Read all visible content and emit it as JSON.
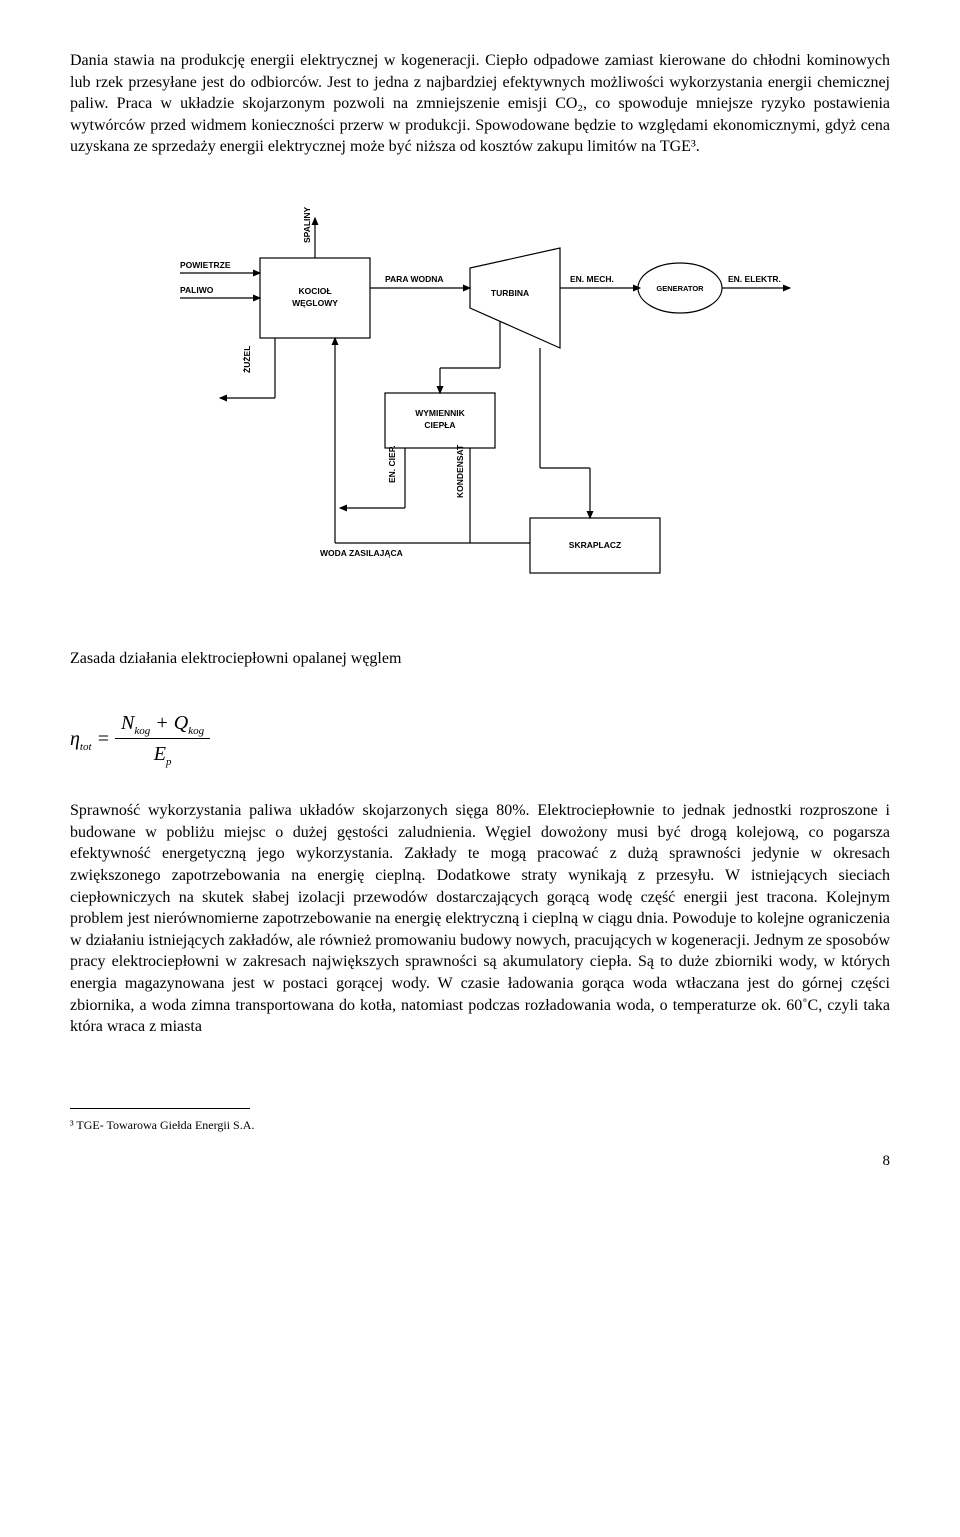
{
  "para1": "Dania stawia na produkcję energii elektrycznej w kogeneracji. Ciepło odpadowe zamiast kierowane do chłodni kominowych lub rzek przesyłane jest do odbiorców. Jest to jedna z najbardziej efektywnych możliwości wykorzystania energii chemicznej paliw. Praca w układzie skojarzonym pozwoli na zmniejszenie emisji CO₂, co spowoduje mniejsze ryzyko postawienia wytwórców przed widmem konieczności przerw w produkcji. Spowodowane będzie to względami ekonomicznymi, gdyż cena uzyskana ze sprzedaży energii elektrycznej może być niższa od kosztów zakupu limitów na TGE³.",
  "caption": "Zasada działania elektrociepłowni opalanej węglem",
  "para2": "Sprawność wykorzystania paliwa układów skojarzonych sięga 80%. Elektrociepłownie to jednak jednostki rozproszone i budowane w pobliżu miejsc o dużej gęstości zaludnienia. Węgiel dowożony musi być drogą kolejową, co pogarsza efektywność energetyczną jego wykorzystania. Zakłady te mogą pracować z dużą sprawności jedynie w okresach zwiększonego zapotrzebowania na energię cieplną. Dodatkowe straty wynikają z przesyłu. W istniejących sieciach ciepłowniczych na skutek słabej izolacji przewodów dostarczających gorącą wodę część energii jest tracona. Kolejnym problem jest nierównomierne zapotrzebowanie na energię elektryczną i cieplną w ciągu dnia. Powoduje to kolejne ograniczenia w działaniu istniejących zakładów, ale również promowaniu budowy nowych, pracujących w kogeneracji. Jednym ze sposobów pracy elektrociepłowni w zakresach największych sprawności są akumulatory ciepła. Są to duże zbiorniki wody, w których energia magazynowana jest w postaci gorącej wody. W czasie ładowania gorąca woda wtłaczana jest do górnej części zbiornika, a woda zimna transportowana do kotła, natomiast podczas rozładowania woda, o temperaturze ok. 60˚C, czyli taka która wraca z miasta",
  "footnote": "³ TGE- Towarowa Giełda Energii S.A.",
  "pagenum": "8",
  "diagram": {
    "background": "#ffffff",
    "stroke": "#000000",
    "stroke_width": 1.2,
    "font_family": "Arial, sans-serif",
    "font_weight": "bold",
    "label_fontsize": 8.5,
    "labels": {
      "powietrze": "POWIETRZE",
      "paliwo": "PALIWO",
      "zutel": "ŻUŻEL",
      "spaliny": "SPALINY",
      "para_wodna": "PARA WODNA",
      "en_ciep": "EN. CIEP.",
      "kondensat": "KONDENSAT",
      "en_mech": "EN. MECH.",
      "en_elektr": "EN. ELEKTR.",
      "woda_zasilajaca": "WODA ZASILAJĄCA"
    },
    "boxes": {
      "kociol": "KOCIOŁ WĘGLOWY",
      "turbina": "TURBINA",
      "generator": "GENERATOR",
      "wymiennik": "WYMIENNIK CIEPŁA",
      "skraplacz": "SKRAPLACZ"
    }
  }
}
